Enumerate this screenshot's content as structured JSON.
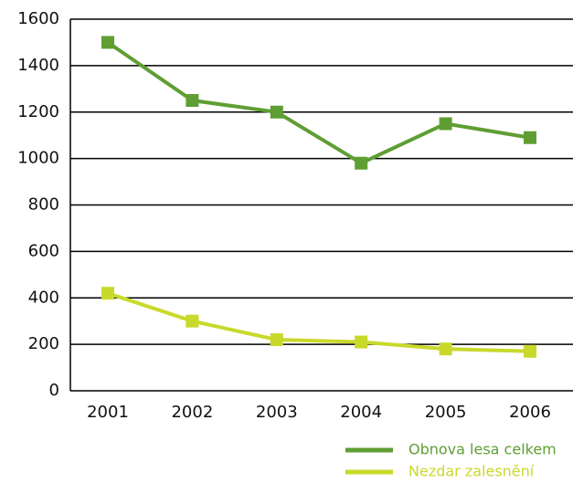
{
  "chart_data": {
    "type": "line",
    "categories": [
      "2001",
      "2002",
      "2003",
      "2004",
      "2005",
      "2006"
    ],
    "series": [
      {
        "name": "Obnova lesa celkem",
        "color": "#5f9e33",
        "values": [
          1500,
          1250,
          1200,
          980,
          1150,
          1090
        ]
      },
      {
        "name": "Nezdar zalesnění",
        "color": "#c9d92b",
        "values": [
          420,
          300,
          220,
          210,
          180,
          170
        ]
      }
    ],
    "ylim": [
      0,
      1600
    ],
    "yticks": [
      0,
      200,
      400,
      600,
      800,
      1000,
      1200,
      1400,
      1600
    ],
    "grid": true,
    "legend": "bottom-right"
  }
}
